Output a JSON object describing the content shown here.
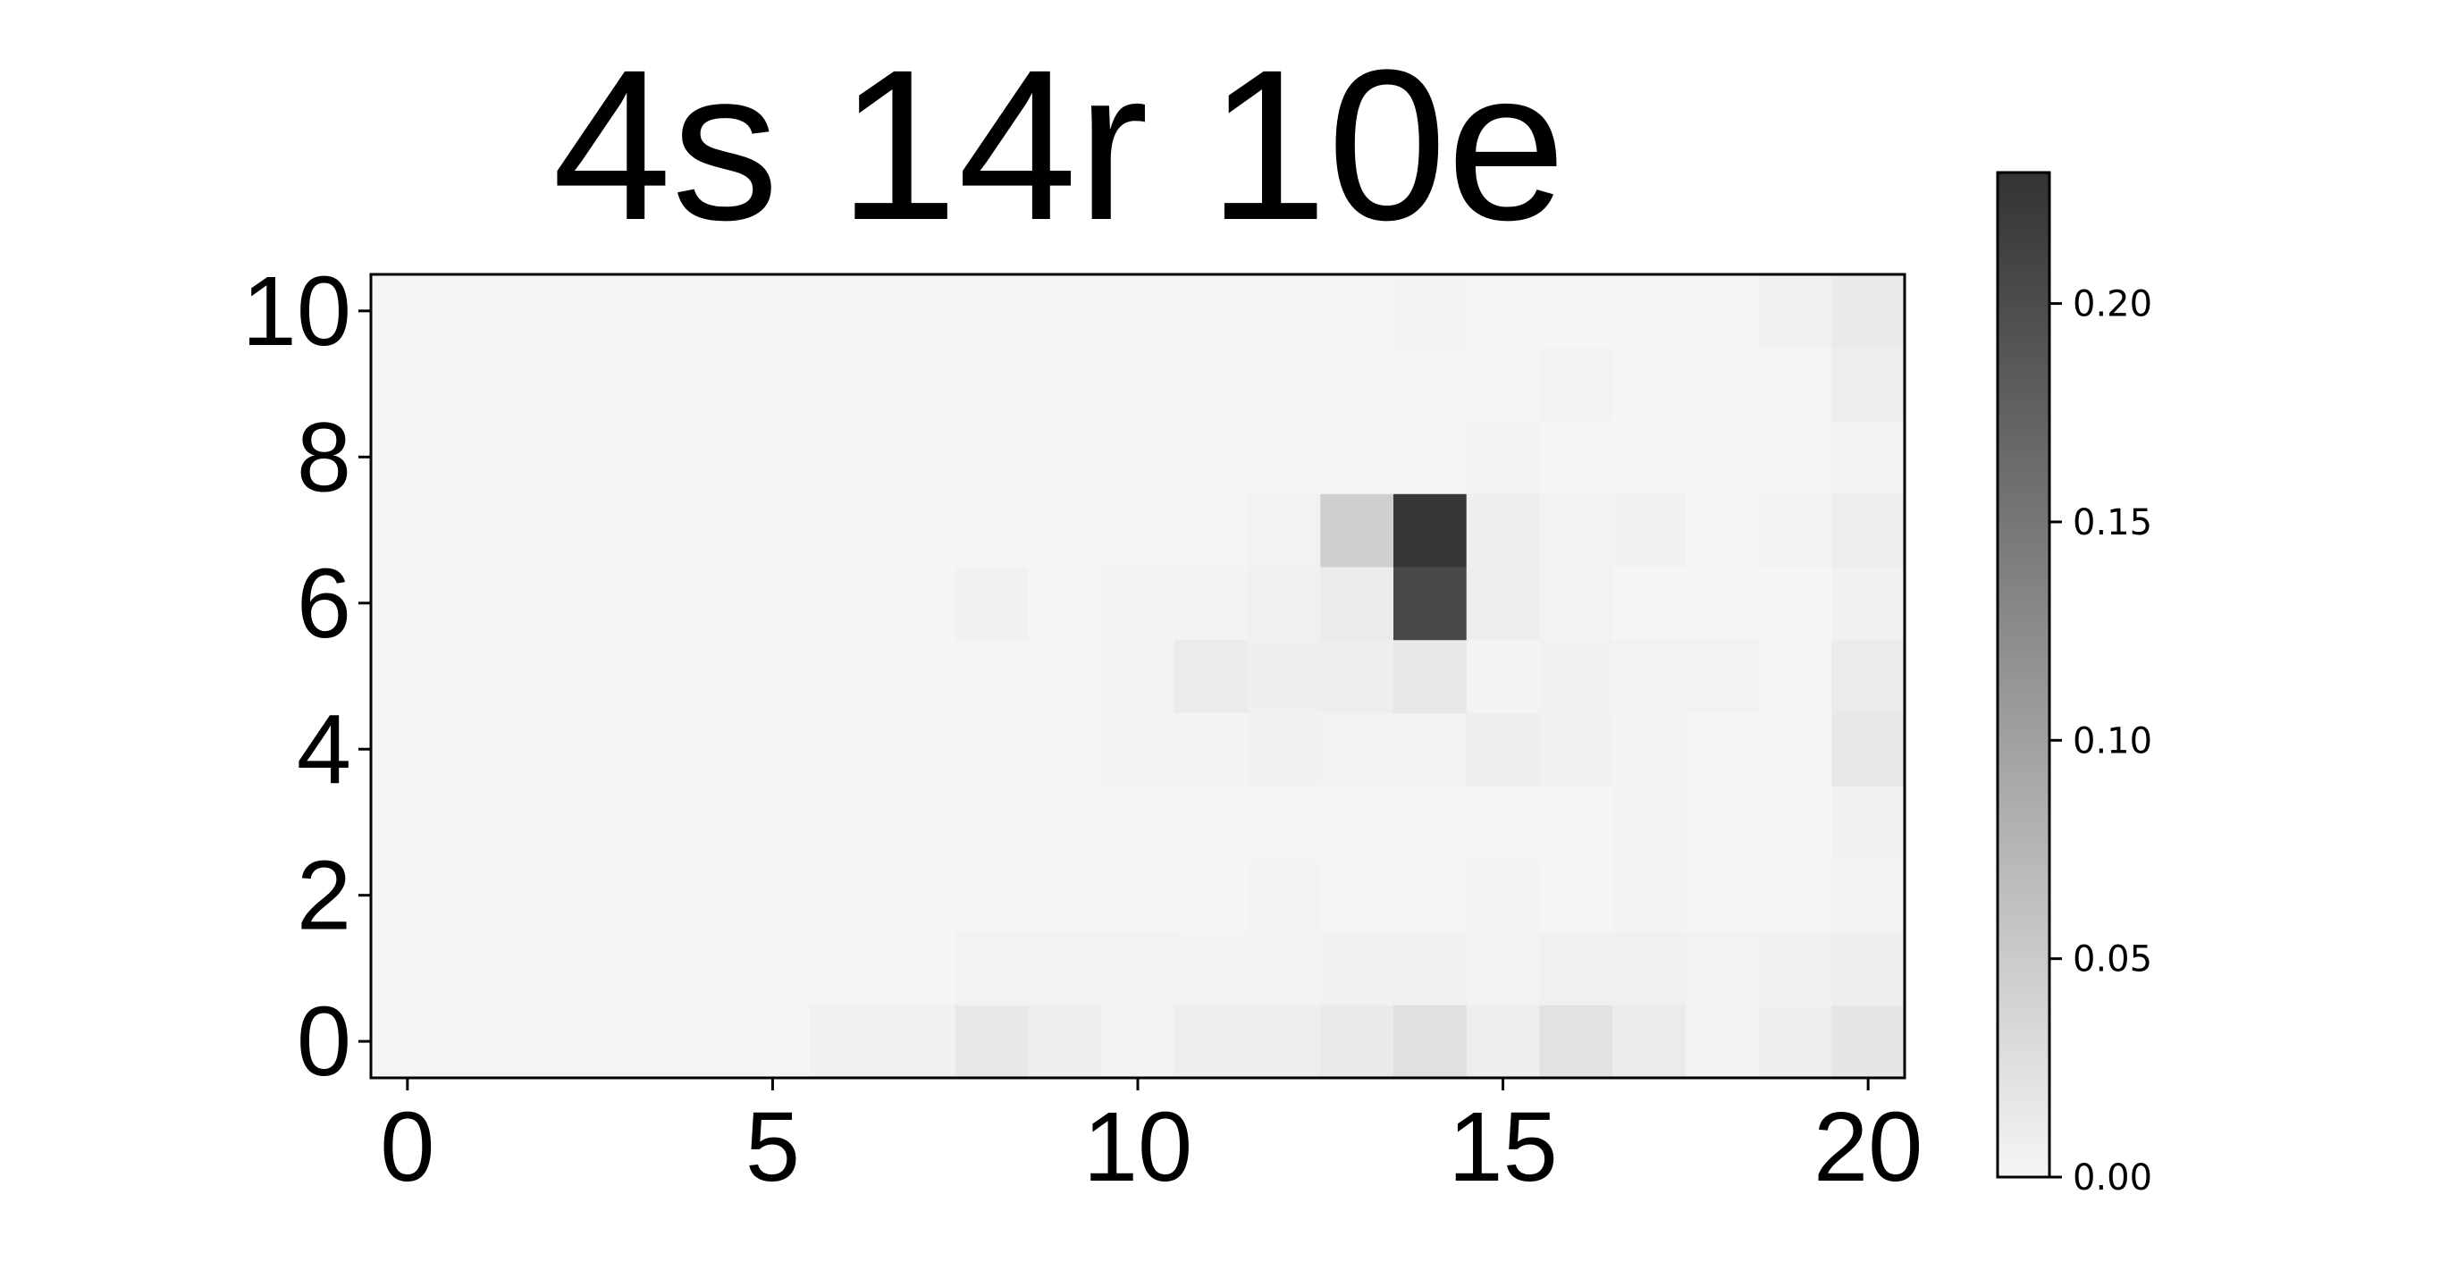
{
  "chart_data": {
    "type": "heatmap",
    "title": "4s 14r 10e",
    "xlabel": "",
    "ylabel": "",
    "x_range": [
      -0.5,
      20.5
    ],
    "y_range": [
      -0.5,
      10.5
    ],
    "x_ticks": [
      "0",
      "5",
      "10",
      "15",
      "20"
    ],
    "y_ticks": [
      "0",
      "2",
      "4",
      "6",
      "8",
      "10"
    ],
    "grid": false,
    "colormap": "Greys (light to dark)",
    "colorbar": {
      "min": 0.0,
      "max": 0.23,
      "ticks": [
        "0.00",
        "0.05",
        "0.10",
        "0.15",
        "0.20"
      ],
      "tick_values": [
        0.0,
        0.05,
        0.1,
        0.15,
        0.2
      ],
      "low_color": "#f5f5f5",
      "high_color": "#333333"
    },
    "n_cols": 21,
    "n_rows": 11,
    "cells": [
      {
        "x": 6,
        "y": 0,
        "v": 0.005
      },
      {
        "x": 7,
        "y": 0,
        "v": 0.005
      },
      {
        "x": 8,
        "y": 0,
        "v": 0.015
      },
      {
        "x": 9,
        "y": 0,
        "v": 0.008
      },
      {
        "x": 10,
        "y": 0,
        "v": 0.003
      },
      {
        "x": 11,
        "y": 0,
        "v": 0.008
      },
      {
        "x": 12,
        "y": 0,
        "v": 0.008
      },
      {
        "x": 13,
        "y": 0,
        "v": 0.013
      },
      {
        "x": 14,
        "y": 0,
        "v": 0.025
      },
      {
        "x": 15,
        "y": 0,
        "v": 0.008
      },
      {
        "x": 16,
        "y": 0,
        "v": 0.022
      },
      {
        "x": 17,
        "y": 0,
        "v": 0.012
      },
      {
        "x": 18,
        "y": 0,
        "v": 0.003
      },
      {
        "x": 19,
        "y": 0,
        "v": 0.008
      },
      {
        "x": 20,
        "y": 0,
        "v": 0.018
      },
      {
        "x": 8,
        "y": 1,
        "v": 0.003
      },
      {
        "x": 9,
        "y": 1,
        "v": 0.003
      },
      {
        "x": 10,
        "y": 1,
        "v": 0.003
      },
      {
        "x": 11,
        "y": 1,
        "v": 0.002
      },
      {
        "x": 12,
        "y": 1,
        "v": 0.004
      },
      {
        "x": 13,
        "y": 1,
        "v": 0.005
      },
      {
        "x": 14,
        "y": 1,
        "v": 0.006
      },
      {
        "x": 15,
        "y": 1,
        "v": 0.003
      },
      {
        "x": 16,
        "y": 1,
        "v": 0.006
      },
      {
        "x": 17,
        "y": 1,
        "v": 0.006
      },
      {
        "x": 18,
        "y": 1,
        "v": 0.003
      },
      {
        "x": 19,
        "y": 1,
        "v": 0.006
      },
      {
        "x": 20,
        "y": 1,
        "v": 0.008
      },
      {
        "x": 12,
        "y": 2,
        "v": 0.002
      },
      {
        "x": 15,
        "y": 2,
        "v": 0.002
      },
      {
        "x": 17,
        "y": 2,
        "v": 0.002
      },
      {
        "x": 20,
        "y": 2,
        "v": 0.003
      },
      {
        "x": 20,
        "y": 3,
        "v": 0.005
      },
      {
        "x": 17,
        "y": 3,
        "v": 0.002
      },
      {
        "x": 10,
        "y": 4,
        "v": 0.002
      },
      {
        "x": 11,
        "y": 4,
        "v": 0.002
      },
      {
        "x": 12,
        "y": 4,
        "v": 0.005
      },
      {
        "x": 13,
        "y": 4,
        "v": 0.003
      },
      {
        "x": 14,
        "y": 4,
        "v": 0.003
      },
      {
        "x": 15,
        "y": 4,
        "v": 0.008
      },
      {
        "x": 16,
        "y": 4,
        "v": 0.005
      },
      {
        "x": 17,
        "y": 4,
        "v": 0.002
      },
      {
        "x": 20,
        "y": 4,
        "v": 0.015
      },
      {
        "x": 10,
        "y": 5,
        "v": 0.003
      },
      {
        "x": 11,
        "y": 5,
        "v": 0.012
      },
      {
        "x": 12,
        "y": 5,
        "v": 0.007
      },
      {
        "x": 13,
        "y": 5,
        "v": 0.008
      },
      {
        "x": 14,
        "y": 5,
        "v": 0.015
      },
      {
        "x": 15,
        "y": 5,
        "v": 0.002
      },
      {
        "x": 16,
        "y": 5,
        "v": 0.005
      },
      {
        "x": 17,
        "y": 5,
        "v": 0.003
      },
      {
        "x": 18,
        "y": 5,
        "v": 0.003
      },
      {
        "x": 20,
        "y": 5,
        "v": 0.012
      },
      {
        "x": 8,
        "y": 6,
        "v": 0.005
      },
      {
        "x": 10,
        "y": 6,
        "v": 0.002
      },
      {
        "x": 11,
        "y": 6,
        "v": 0.002
      },
      {
        "x": 12,
        "y": 6,
        "v": 0.006
      },
      {
        "x": 13,
        "y": 6,
        "v": 0.012
      },
      {
        "x": 14,
        "y": 6,
        "v": 0.205
      },
      {
        "x": 15,
        "y": 6,
        "v": 0.01
      },
      {
        "x": 16,
        "y": 6,
        "v": 0.003
      },
      {
        "x": 20,
        "y": 6,
        "v": 0.005
      },
      {
        "x": 12,
        "y": 7,
        "v": 0.003
      },
      {
        "x": 13,
        "y": 7,
        "v": 0.045
      },
      {
        "x": 14,
        "y": 7,
        "v": 0.225
      },
      {
        "x": 15,
        "y": 7,
        "v": 0.008
      },
      {
        "x": 16,
        "y": 7,
        "v": 0.003
      },
      {
        "x": 17,
        "y": 7,
        "v": 0.005
      },
      {
        "x": 19,
        "y": 7,
        "v": 0.003
      },
      {
        "x": 20,
        "y": 7,
        "v": 0.01
      },
      {
        "x": 15,
        "y": 8,
        "v": 0.002
      },
      {
        "x": 20,
        "y": 8,
        "v": 0.003
      },
      {
        "x": 16,
        "y": 9,
        "v": 0.003
      },
      {
        "x": 20,
        "y": 9,
        "v": 0.01
      },
      {
        "x": 14,
        "y": 10,
        "v": 0.002
      },
      {
        "x": 19,
        "y": 10,
        "v": 0.006
      },
      {
        "x": 20,
        "y": 10,
        "v": 0.013
      }
    ]
  }
}
